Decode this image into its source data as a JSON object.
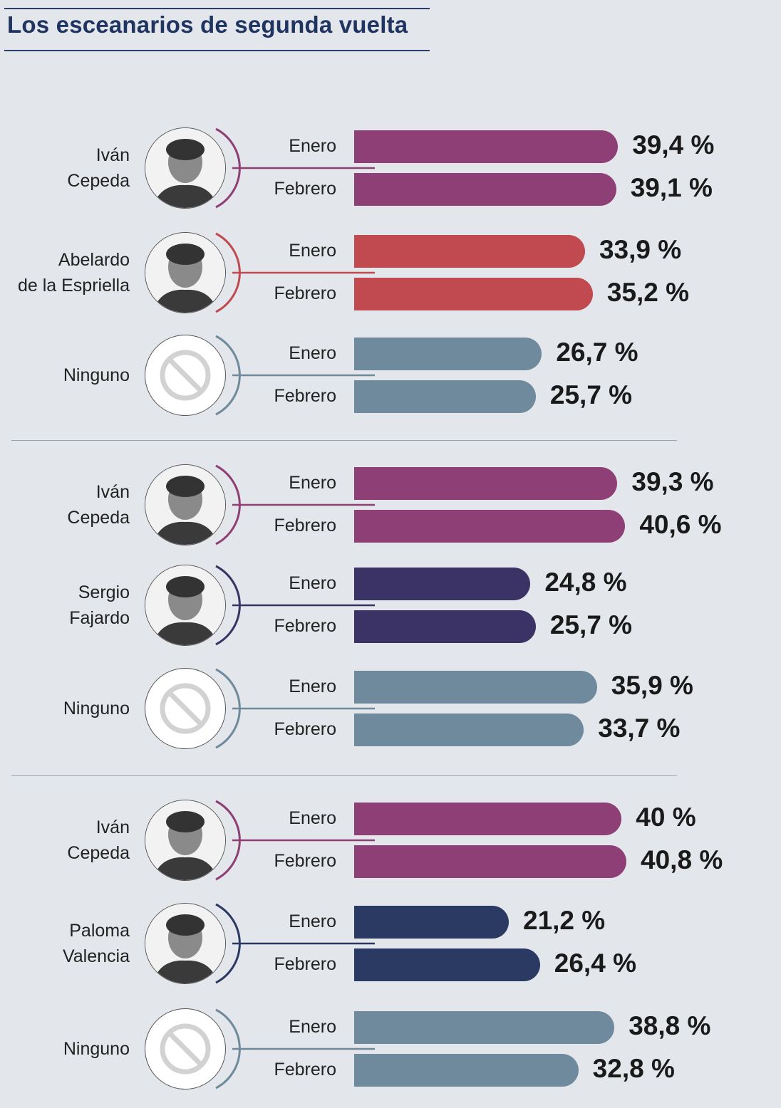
{
  "title": "Los esceanarios de segunda vuelta",
  "colors": {
    "cepeda": "#8e3f75",
    "delaespriella": "#c04a50",
    "ninguno": "#6f8a9c",
    "fajardo": "#3b3265",
    "valencia": "#2a3a62"
  },
  "chart_data": {
    "type": "bar",
    "title": "Los esceanarios de segunda vuelta",
    "unit": "%",
    "months": [
      "Enero",
      "Febrero"
    ],
    "scenarios": [
      {
        "rows": [
          {
            "name": [
              "Iván",
              "Cepeda"
            ],
            "key": "cepeda",
            "icon": "person-photo",
            "values": [
              39.4,
              39.1
            ],
            "labels": [
              "39,4 %",
              "39,1 %"
            ]
          },
          {
            "name": [
              "Abelardo",
              "de la Espriella"
            ],
            "key": "delaespriella",
            "icon": "person-photo",
            "values": [
              33.9,
              35.2
            ],
            "labels": [
              "33,9 %",
              "35,2 %"
            ]
          },
          {
            "name": [
              "Ninguno"
            ],
            "key": "ninguno",
            "icon": "prohibited-icon",
            "values": [
              26.7,
              25.7
            ],
            "labels": [
              "26,7 %",
              "25,7 %"
            ]
          }
        ]
      },
      {
        "rows": [
          {
            "name": [
              "Iván",
              "Cepeda"
            ],
            "key": "cepeda",
            "icon": "person-photo",
            "values": [
              39.3,
              40.6
            ],
            "labels": [
              "39,3 %",
              "40,6 %"
            ]
          },
          {
            "name": [
              "Sergio",
              "Fajardo"
            ],
            "key": "fajardo",
            "icon": "person-photo",
            "values": [
              24.8,
              25.7
            ],
            "labels": [
              "24,8 %",
              "25,7 %"
            ]
          },
          {
            "name": [
              "Ninguno"
            ],
            "key": "ninguno",
            "icon": "prohibited-icon",
            "values": [
              35.9,
              33.7
            ],
            "labels": [
              "35,9 %",
              "33,7 %"
            ]
          }
        ]
      },
      {
        "rows": [
          {
            "name": [
              "Iván",
              "Cepeda"
            ],
            "key": "cepeda",
            "icon": "person-photo",
            "values": [
              40,
              40.8
            ],
            "labels": [
              "40 %",
              "40,8 %"
            ]
          },
          {
            "name": [
              "Paloma",
              "Valencia"
            ],
            "key": "valencia",
            "icon": "person-photo",
            "values": [
              21.2,
              26.4
            ],
            "labels": [
              "21,2 %",
              "26,4 %"
            ]
          },
          {
            "name": [
              "Ninguno"
            ],
            "key": "ninguno",
            "icon": "prohibited-icon",
            "values": [
              38.8,
              32.8
            ],
            "labels": [
              "38,8 %",
              "32,8 %"
            ]
          }
        ]
      }
    ]
  }
}
